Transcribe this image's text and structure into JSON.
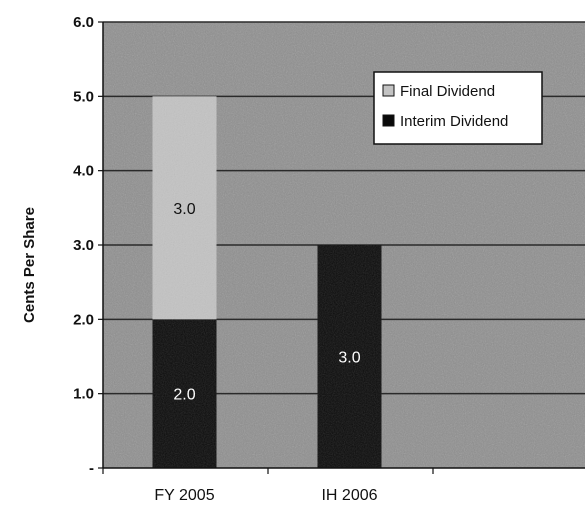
{
  "chart_data": {
    "type": "bar",
    "stacked": true,
    "categories": [
      "FY 2005",
      "IH 2006"
    ],
    "series": [
      {
        "name": "Interim Dividend",
        "values": [
          2.0,
          3.0
        ],
        "color": "#0a0a0a",
        "data_labels": [
          "2.0",
          "3.0"
        ],
        "label_color": "#ffffff"
      },
      {
        "name": "Final Dividend",
        "values": [
          3.0,
          null
        ],
        "color": "#c3c3c3",
        "data_labels": [
          "3.0",
          ""
        ],
        "label_color": "#111111"
      }
    ],
    "legend_order": [
      "Final Dividend",
      "Interim Dividend"
    ],
    "legend_position": "top-right",
    "ylabel": "Cents Per Share",
    "xlabel": "",
    "ylim": [
      0,
      6.0
    ],
    "yticks": [
      0,
      1.0,
      2.0,
      3.0,
      4.0,
      5.0,
      6.0
    ],
    "ytick_labels": [
      "-",
      "1.0",
      "2.0",
      "3.0",
      "4.0",
      "5.0",
      "6.0"
    ],
    "grid": true,
    "plot_background": "#8e8e8e",
    "grid_color": "#2a2a2a"
  }
}
